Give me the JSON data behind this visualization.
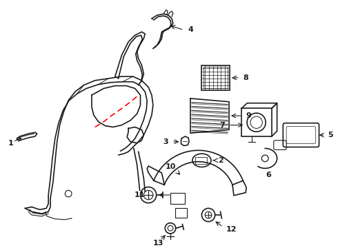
{
  "bg_color": "#ffffff",
  "line_color": "#1a1a1a",
  "red_color": "#ff0000",
  "figsize": [
    4.9,
    3.6
  ],
  "dpi": 100
}
